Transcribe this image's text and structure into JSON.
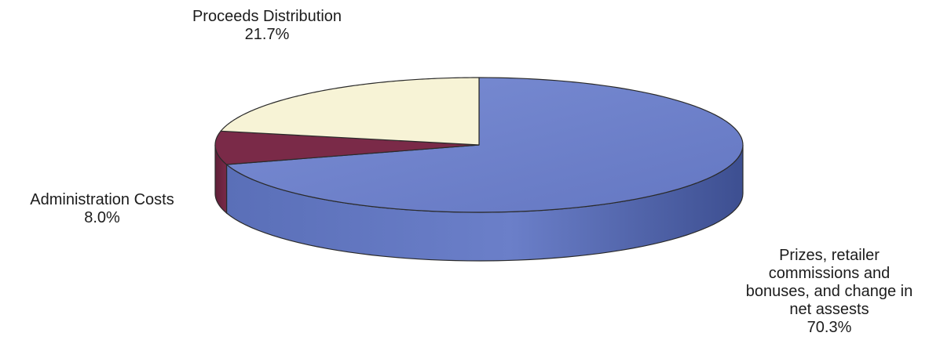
{
  "chart_data": {
    "type": "pie",
    "style": "3d",
    "slices": [
      {
        "key": "prizes",
        "label_lines": [
          "Prizes, retailer",
          "commissions and",
          "bonuses, and change in",
          "net assests"
        ],
        "value": 70.3,
        "value_label": "70.3%",
        "color": "#6b7fc9"
      },
      {
        "key": "admin",
        "label_lines": [
          "Administration Costs"
        ],
        "value": 8.0,
        "value_label": "8.0%",
        "color": "#7a2a48"
      },
      {
        "key": "proceeds",
        "label_lines": [
          "Proceeds Distribution"
        ],
        "value": 21.7,
        "value_label": "21.7%",
        "color": "#f7f3d6"
      }
    ],
    "legend": "none",
    "labels_outside": true
  }
}
